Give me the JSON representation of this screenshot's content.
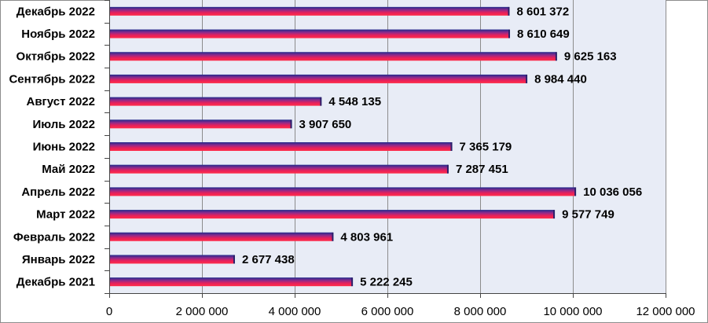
{
  "chart_data": {
    "type": "bar",
    "orientation": "horizontal",
    "categories": [
      "Декабрь 2022",
      "Ноябрь 2022",
      "Октябрь 2022",
      "Сентябрь 2022",
      "Август 2022",
      "Июль 2022",
      "Июнь 2022",
      "Май 2022",
      "Апрель 2022",
      "Март 2022",
      "Февраль 2022",
      "Январь 2022",
      "Декабрь 2021"
    ],
    "values": [
      8601372,
      8610649,
      9625163,
      8984440,
      4548135,
      3907650,
      7365179,
      7287451,
      10036056,
      9577749,
      4803961,
      2677438,
      5222245
    ],
    "value_labels": [
      "8 601 372",
      "8 610 649",
      "9 625 163",
      "8 984 440",
      "4 548 135",
      "3 907 650",
      "7 365 179",
      "7 287 451",
      "10 036 056",
      "9 577 749",
      "4 803 961",
      "2 677 438",
      "5 222 245"
    ],
    "x_ticks": [
      0,
      2000000,
      4000000,
      6000000,
      8000000,
      10000000,
      12000000
    ],
    "x_tick_labels": [
      "0",
      "2 000 000",
      "4 000 000",
      "6 000 000",
      "8 000 000",
      "10 000 000",
      "12 000 000"
    ],
    "xlim": [
      0,
      12000000
    ],
    "title": "",
    "xlabel": "",
    "ylabel": "",
    "grid": "vertical",
    "legend": "none",
    "colors": {
      "plot_background": "#e8ecf6",
      "gridline": "#8c8c8c",
      "bar_gradient": [
        "#1f2a8c",
        "#8c2a8c",
        "#e8205a",
        "#ff2e4a"
      ]
    }
  }
}
